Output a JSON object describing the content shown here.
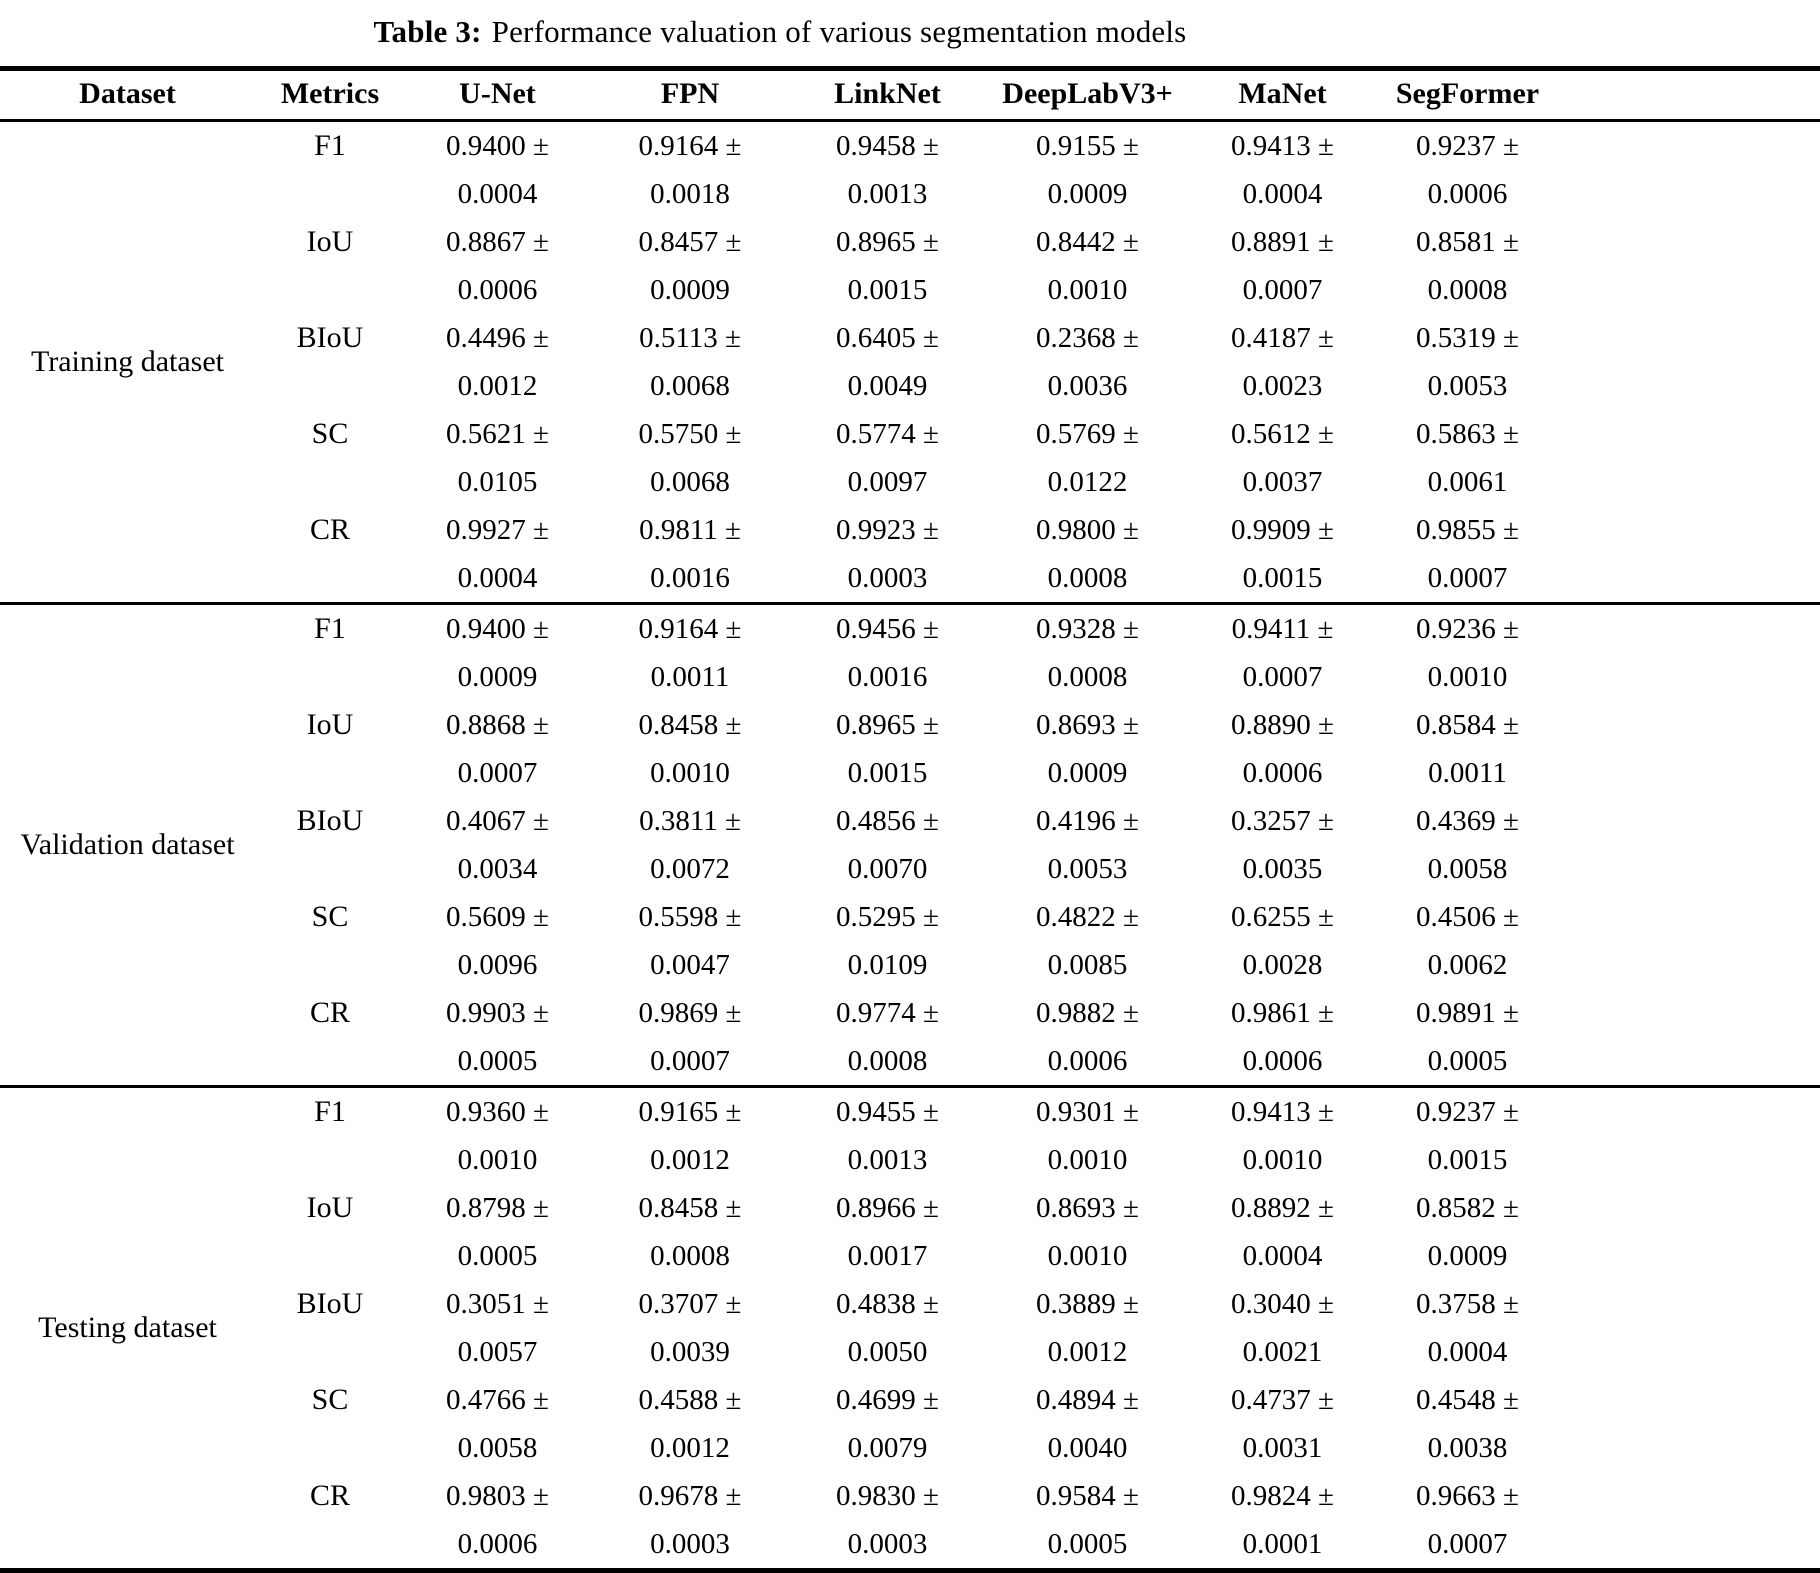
{
  "pm": "±",
  "title": {
    "label": "Table 3:",
    "text": "Performance valuation of various segmentation models"
  },
  "table": {
    "columns": [
      "Dataset",
      "Metrics",
      "U-Net",
      "FPN",
      "LinkNet",
      "DeepLabV3+",
      "MaNet",
      "SegFormer"
    ],
    "models": [
      "U-Net",
      "FPN",
      "LinkNet",
      "DeepLabV3+",
      "MaNet",
      "SegFormer"
    ],
    "sections": [
      {
        "dataset": "Training dataset",
        "rows": [
          {
            "metric": "F1",
            "cells": [
              {
                "value": "0.9400",
                "error": "0.0004"
              },
              {
                "value": "0.9164",
                "error": "0.0018"
              },
              {
                "value": "0.9458",
                "error": "0.0013"
              },
              {
                "value": "0.9155",
                "error": "0.0009"
              },
              {
                "value": "0.9413",
                "error": "0.0004"
              },
              {
                "value": "0.9237",
                "error": "0.0006"
              }
            ]
          },
          {
            "metric": "IoU",
            "cells": [
              {
                "value": "0.8867",
                "error": "0.0006"
              },
              {
                "value": "0.8457",
                "error": "0.0009"
              },
              {
                "value": "0.8965",
                "error": "0.0015"
              },
              {
                "value": "0.8442",
                "error": "0.0010"
              },
              {
                "value": "0.8891",
                "error": "0.0007"
              },
              {
                "value": "0.8581",
                "error": "0.0008"
              }
            ]
          },
          {
            "metric": "BIoU",
            "cells": [
              {
                "value": "0.4496",
                "error": "0.0012"
              },
              {
                "value": "0.5113",
                "error": "0.0068"
              },
              {
                "value": "0.6405",
                "error": "0.0049"
              },
              {
                "value": "0.2368",
                "error": "0.0036"
              },
              {
                "value": "0.4187",
                "error": "0.0023"
              },
              {
                "value": "0.5319",
                "error": "0.0053"
              }
            ]
          },
          {
            "metric": "SC",
            "cells": [
              {
                "value": "0.5621",
                "error": "0.0105"
              },
              {
                "value": "0.5750",
                "error": "0.0068"
              },
              {
                "value": "0.5774",
                "error": "0.0097"
              },
              {
                "value": "0.5769",
                "error": "0.0122"
              },
              {
                "value": "0.5612",
                "error": "0.0037"
              },
              {
                "value": "0.5863",
                "error": "0.0061"
              }
            ]
          },
          {
            "metric": "CR",
            "cells": [
              {
                "value": "0.9927",
                "error": "0.0004"
              },
              {
                "value": "0.9811",
                "error": "0.0016"
              },
              {
                "value": "0.9923",
                "error": "0.0003"
              },
              {
                "value": "0.9800",
                "error": "0.0008"
              },
              {
                "value": "0.9909",
                "error": "0.0015"
              },
              {
                "value": "0.9855",
                "error": "0.0007"
              }
            ]
          }
        ]
      },
      {
        "dataset": "Validation dataset",
        "rows": [
          {
            "metric": "F1",
            "cells": [
              {
                "value": "0.9400",
                "error": "0.0009"
              },
              {
                "value": "0.9164",
                "error": "0.0011"
              },
              {
                "value": "0.9456",
                "error": "0.0016"
              },
              {
                "value": "0.9328",
                "error": "0.0008"
              },
              {
                "value": "0.9411",
                "error": "0.0007"
              },
              {
                "value": "0.9236",
                "error": "0.0010"
              }
            ]
          },
          {
            "metric": "IoU",
            "cells": [
              {
                "value": "0.8868",
                "error": "0.0007"
              },
              {
                "value": "0.8458",
                "error": "0.0010"
              },
              {
                "value": "0.8965",
                "error": "0.0015"
              },
              {
                "value": "0.8693",
                "error": "0.0009"
              },
              {
                "value": "0.8890",
                "error": "0.0006"
              },
              {
                "value": "0.8584",
                "error": "0.0011"
              }
            ]
          },
          {
            "metric": "BIoU",
            "cells": [
              {
                "value": "0.4067",
                "error": "0.0034"
              },
              {
                "value": "0.3811",
                "error": "0.0072"
              },
              {
                "value": "0.4856",
                "error": "0.0070"
              },
              {
                "value": "0.4196",
                "error": "0.0053"
              },
              {
                "value": "0.3257",
                "error": "0.0035"
              },
              {
                "value": "0.4369",
                "error": "0.0058"
              }
            ]
          },
          {
            "metric": "SC",
            "cells": [
              {
                "value": "0.5609",
                "error": "0.0096"
              },
              {
                "value": "0.5598",
                "error": "0.0047"
              },
              {
                "value": "0.5295",
                "error": "0.0109"
              },
              {
                "value": "0.4822",
                "error": "0.0085"
              },
              {
                "value": "0.6255",
                "error": "0.0028"
              },
              {
                "value": "0.4506",
                "error": "0.0062"
              }
            ]
          },
          {
            "metric": "CR",
            "cells": [
              {
                "value": "0.9903",
                "error": "0.0005"
              },
              {
                "value": "0.9869",
                "error": "0.0007"
              },
              {
                "value": "0.9774",
                "error": "0.0008"
              },
              {
                "value": "0.9882",
                "error": "0.0006"
              },
              {
                "value": "0.9861",
                "error": "0.0006"
              },
              {
                "value": "0.9891",
                "error": "0.0005"
              }
            ]
          }
        ]
      },
      {
        "dataset": "Testing dataset",
        "rows": [
          {
            "metric": "F1",
            "cells": [
              {
                "value": "0.9360",
                "error": "0.0010"
              },
              {
                "value": "0.9165",
                "error": "0.0012"
              },
              {
                "value": "0.9455",
                "error": "0.0013"
              },
              {
                "value": "0.9301",
                "error": "0.0010"
              },
              {
                "value": "0.9413",
                "error": "0.0010"
              },
              {
                "value": "0.9237",
                "error": "0.0015"
              }
            ]
          },
          {
            "metric": "IoU",
            "cells": [
              {
                "value": "0.8798",
                "error": "0.0005"
              },
              {
                "value": "0.8458",
                "error": "0.0008"
              },
              {
                "value": "0.8966",
                "error": "0.0017"
              },
              {
                "value": "0.8693",
                "error": "0.0010"
              },
              {
                "value": "0.8892",
                "error": "0.0004"
              },
              {
                "value": "0.8582",
                "error": "0.0009"
              }
            ]
          },
          {
            "metric": "BIoU",
            "cells": [
              {
                "value": "0.3051",
                "error": "0.0057"
              },
              {
                "value": "0.3707",
                "error": "0.0039"
              },
              {
                "value": "0.4838",
                "error": "0.0050"
              },
              {
                "value": "0.3889",
                "error": "0.0012"
              },
              {
                "value": "0.3040",
                "error": "0.0021"
              },
              {
                "value": "0.3758",
                "error": "0.0004"
              }
            ]
          },
          {
            "metric": "SC",
            "cells": [
              {
                "value": "0.4766",
                "error": "0.0058"
              },
              {
                "value": "0.4588",
                "error": "0.0012"
              },
              {
                "value": "0.4699",
                "error": "0.0079"
              },
              {
                "value": "0.4894",
                "error": "0.0040"
              },
              {
                "value": "0.4737",
                "error": "0.0031"
              },
              {
                "value": "0.4548",
                "error": "0.0038"
              }
            ]
          },
          {
            "metric": "CR",
            "cells": [
              {
                "value": "0.9803",
                "error": "0.0006"
              },
              {
                "value": "0.9678",
                "error": "0.0003"
              },
              {
                "value": "0.9830",
                "error": "0.0003"
              },
              {
                "value": "0.9584",
                "error": "0.0005"
              },
              {
                "value": "0.9824",
                "error": "0.0001"
              },
              {
                "value": "0.9663",
                "error": "0.0007"
              }
            ]
          }
        ]
      }
    ]
  }
}
